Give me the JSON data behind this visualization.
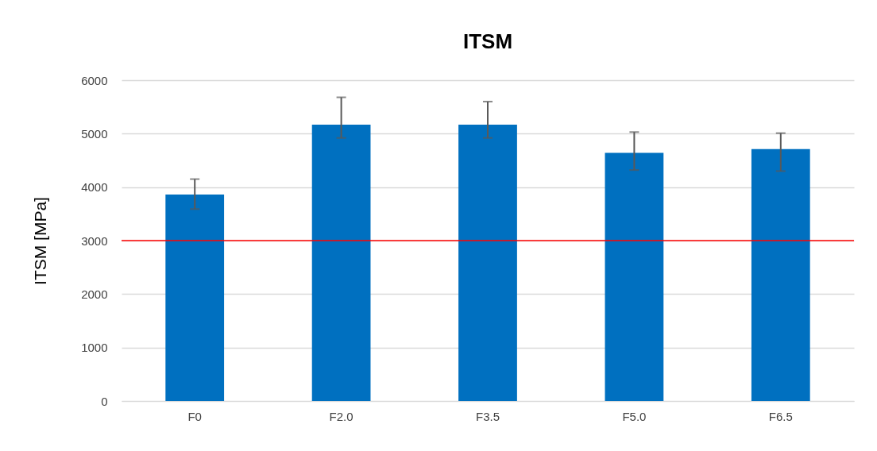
{
  "chart_data": {
    "type": "bar",
    "title": "ITSM",
    "ylabel": "ITSM [MPa]",
    "categories": [
      "F0",
      "F2.0",
      "F3.5",
      "F5.0",
      "F6.5"
    ],
    "values": [
      3860,
      5170,
      5170,
      4640,
      4710
    ],
    "errors": [
      [
        3590,
        4150
      ],
      [
        4920,
        5680
      ],
      [
        4920,
        5600
      ],
      [
        4320,
        5030
      ],
      [
        4300,
        5010
      ]
    ],
    "color": "#0070c0",
    "ylim": [
      0,
      6000
    ],
    "yticks": [
      0,
      1000,
      2000,
      3000,
      4000,
      5000,
      6000
    ],
    "grid": "y",
    "ref_lines": [
      {
        "axis": "y",
        "value": 3000,
        "color": "#ff0000"
      }
    ]
  }
}
